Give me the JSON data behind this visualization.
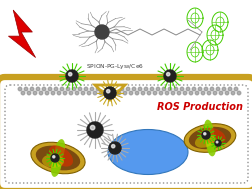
{
  "bg_color": "#ffffff",
  "ros_text": "ROS Production",
  "ros_color": "#cc0000",
  "label_text": "SPION-PG-Lys",
  "label_color": "#404040",
  "lightning_color": "#dd0000",
  "cell_fill": "#ffffff",
  "cell_border_gold": "#c8a020",
  "cell_border_gray": "#909090",
  "nucleus_color": "#5599ee",
  "spike_green": "#44cc00",
  "spike_gray": "#aaaaaa",
  "spike_gold": "#c8a820",
  "core_color": "#202020",
  "mito_outer": "#c8a020",
  "mito_brown": "#7a4a10",
  "mito_green": "#88cc00",
  "mito_red": "#cc3300",
  "struct_color": "#888888",
  "ce6_color": "#44cc00"
}
